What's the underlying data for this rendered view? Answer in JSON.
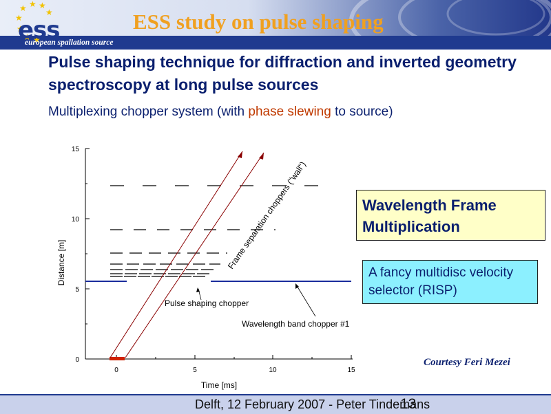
{
  "header": {
    "logo_text": "ess",
    "logo_subtitle": "european spallation source",
    "slide_title": "ESS study on pulse shaping"
  },
  "heading": "Pulse shaping technique for diffraction and inverted geometry spectroscopy at long pulse sources",
  "subheading": {
    "pre": "Multiplexing chopper system (with ",
    "highlight": "phase slewing",
    "post": " to source)"
  },
  "colors": {
    "title": "#f0a020",
    "heading": "#0a1f6e",
    "highlight": "#c03a00",
    "yellow_box": "#ffffc8",
    "cyan_box": "#8cf0ff"
  },
  "diagram": {
    "x_axis_label": "Time [ms]",
    "y_axis_label": "Distance [m]",
    "x_ticks": [
      "0",
      "5",
      "10",
      "15"
    ],
    "y_ticks": [
      "0",
      "5",
      "10",
      "15"
    ],
    "annotation_pulse_chopper": "Pulse shaping chopper",
    "annotation_band_chopper": "Wavelength band chopper #1",
    "annotation_frame_choppers": "Frame separation choppers (\"wall\")"
  },
  "boxes": {
    "wavelength_frame": "Wavelength Frame Multiplication",
    "velocity_selector": "A fancy multidisc velocity selector (RISP)"
  },
  "courtesy": "Courtesy Feri Mezei",
  "footer": {
    "text": "Delft, 12 February 2007 - Peter Tindemans",
    "page": "13"
  }
}
